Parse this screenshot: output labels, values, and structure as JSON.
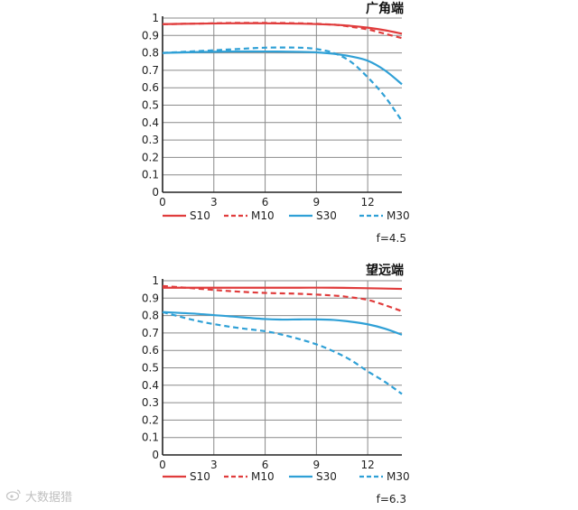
{
  "chart_data": [
    {
      "type": "line",
      "title": "广角端",
      "x_ticks": [
        0,
        3,
        6,
        9,
        12
      ],
      "y_ticks": [
        "0",
        "0.1",
        "0.2",
        "0.3",
        "0.4",
        "0.5",
        "0.6",
        "0.7",
        "0.8",
        "0.9",
        "1"
      ],
      "xlim": [
        0,
        14
      ],
      "ylim": [
        0,
        1
      ],
      "grid": true,
      "legend": "bottom",
      "aperture": "f=4.5",
      "series": [
        {
          "name": "S10",
          "color": "#e03c3c",
          "dash": false,
          "x": [
            0,
            2,
            4,
            6,
            8,
            10,
            11,
            12,
            13,
            14
          ],
          "y": [
            0.965,
            0.968,
            0.97,
            0.97,
            0.968,
            0.962,
            0.955,
            0.945,
            0.93,
            0.91
          ]
        },
        {
          "name": "M10",
          "color": "#e03c3c",
          "dash": true,
          "x": [
            0,
            2,
            4,
            6,
            8,
            10,
            11,
            12,
            13,
            14
          ],
          "y": [
            0.965,
            0.968,
            0.972,
            0.972,
            0.97,
            0.962,
            0.95,
            0.935,
            0.91,
            0.885
          ]
        },
        {
          "name": "S30",
          "color": "#2fa0d6",
          "dash": false,
          "x": [
            0,
            2,
            4,
            6,
            8,
            9,
            10,
            11,
            12,
            13,
            14
          ],
          "y": [
            0.8,
            0.805,
            0.808,
            0.808,
            0.806,
            0.803,
            0.795,
            0.78,
            0.755,
            0.7,
            0.62
          ]
        },
        {
          "name": "M30",
          "color": "#2fa0d6",
          "dash": true,
          "x": [
            0,
            2,
            4,
            6,
            8,
            9,
            10,
            11,
            12,
            13,
            14
          ],
          "y": [
            0.8,
            0.81,
            0.82,
            0.83,
            0.83,
            0.822,
            0.8,
            0.75,
            0.66,
            0.55,
            0.41
          ]
        }
      ]
    },
    {
      "type": "line",
      "title": "望远端",
      "x_ticks": [
        0,
        3,
        6,
        9,
        12
      ],
      "y_ticks": [
        "0",
        "0.1",
        "0.2",
        "0.3",
        "0.4",
        "0.5",
        "0.6",
        "0.7",
        "0.8",
        "0.9",
        "1"
      ],
      "xlim": [
        0,
        14
      ],
      "ylim": [
        0,
        1
      ],
      "grid": true,
      "legend": "bottom",
      "aperture": "f=6.3",
      "series": [
        {
          "name": "S10",
          "color": "#e03c3c",
          "dash": false,
          "x": [
            0,
            2,
            4,
            6,
            8,
            10,
            12,
            14
          ],
          "y": [
            0.96,
            0.96,
            0.96,
            0.96,
            0.96,
            0.96,
            0.957,
            0.953
          ]
        },
        {
          "name": "M10",
          "color": "#e03c3c",
          "dash": true,
          "x": [
            0,
            2,
            4,
            6,
            8,
            10,
            11,
            12,
            13,
            14
          ],
          "y": [
            0.97,
            0.955,
            0.94,
            0.93,
            0.925,
            0.915,
            0.905,
            0.89,
            0.86,
            0.825
          ]
        },
        {
          "name": "S30",
          "color": "#2fa0d6",
          "dash": false,
          "x": [
            0,
            2,
            4,
            6,
            7,
            8,
            9,
            10,
            11,
            12,
            13,
            14
          ],
          "y": [
            0.82,
            0.81,
            0.795,
            0.78,
            0.777,
            0.778,
            0.778,
            0.775,
            0.765,
            0.75,
            0.725,
            0.69
          ]
        },
        {
          "name": "M30",
          "color": "#2fa0d6",
          "dash": true,
          "x": [
            0,
            2,
            4,
            6,
            7,
            8,
            9,
            10,
            11,
            12,
            13,
            14
          ],
          "y": [
            0.82,
            0.77,
            0.735,
            0.71,
            0.69,
            0.665,
            0.635,
            0.595,
            0.545,
            0.48,
            0.42,
            0.35
          ]
        }
      ]
    }
  ],
  "watermark": {
    "icon": "weibo-icon",
    "text": "大数据猎"
  }
}
